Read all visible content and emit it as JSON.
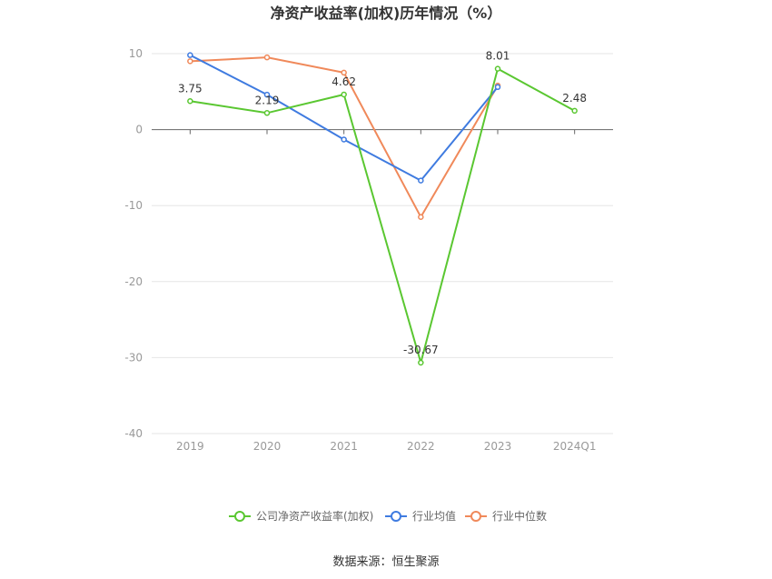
{
  "chart_data": {
    "type": "line",
    "title": "净资产收益率(加权)历年情况（%）",
    "categories": [
      "2019",
      "2020",
      "2021",
      "2022",
      "2023",
      "2024Q1"
    ],
    "ylim": [
      -40,
      10
    ],
    "yticks": [
      "10",
      "0",
      "-10",
      "-20",
      "-30",
      "-40"
    ],
    "grid": true,
    "legend_position": "bottom",
    "series": [
      {
        "name": "公司净资产收益率(加权)",
        "color": "#5ac731",
        "values": [
          3.75,
          2.19,
          4.62,
          -30.67,
          8.01,
          2.48
        ],
        "labels": [
          "3.75",
          "2.19",
          "4.62",
          "-30.67",
          "8.01",
          "2.48"
        ]
      },
      {
        "name": "行业均值",
        "color": "#3f7be0",
        "values": [
          9.8,
          4.6,
          -1.3,
          -6.7,
          5.6,
          null
        ]
      },
      {
        "name": "行业中位数",
        "color": "#f0895a",
        "values": [
          9.0,
          9.5,
          7.5,
          -11.5,
          5.8,
          null
        ]
      }
    ]
  },
  "source": "数据来源：恒生聚源"
}
